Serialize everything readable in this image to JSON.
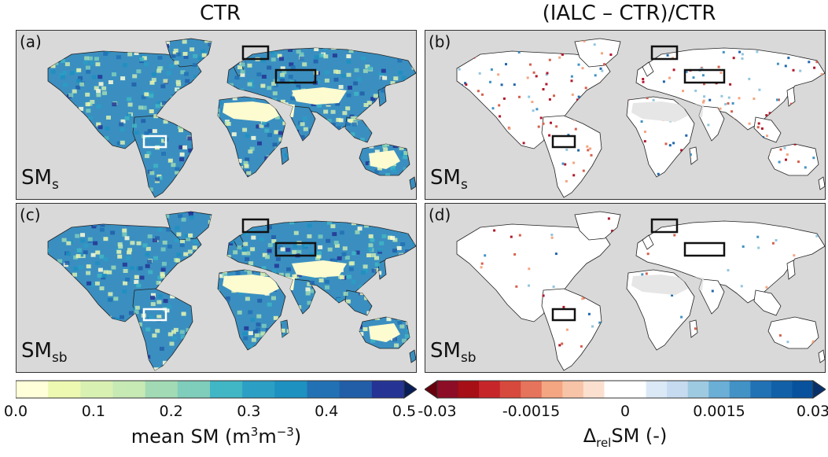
{
  "columns": {
    "left_title": "CTR",
    "right_title": "(IALC – CTR)/CTR"
  },
  "panels": [
    {
      "id": "a",
      "label": "(a)",
      "var_main": "SM",
      "var_sub": "s",
      "style": "ctr",
      "box_color": "#111111",
      "sa_box_color": "#ffffff"
    },
    {
      "id": "b",
      "label": "(b)",
      "var_main": "SM",
      "var_sub": "s",
      "style": "rel",
      "box_color": "#111111",
      "sa_box_color": "#111111"
    },
    {
      "id": "c",
      "label": "(c)",
      "var_main": "SM",
      "var_sub": "sb",
      "style": "ctr",
      "box_color": "#111111",
      "sa_box_color": "#ffffff"
    },
    {
      "id": "d",
      "label": "(d)",
      "var_main": "SM",
      "var_sub": "sb",
      "style": "rel",
      "box_color": "#111111",
      "sa_box_color": "#111111"
    }
  ],
  "colorbar_left": {
    "ticks": [
      "0.0",
      "0.1",
      "0.2",
      "0.3",
      "0.4",
      "0.5"
    ],
    "label_main": "mean SM (m",
    "label_sup1": "3",
    "label_mid": "m",
    "label_sup2": "−3",
    "label_end": ")",
    "colors": [
      "#ffffd9",
      "#edf8b1",
      "#d9f0b3",
      "#c7e9b4",
      "#a1dab4",
      "#7fcdbb",
      "#41b6c4",
      "#2c9fc4",
      "#1d91c0",
      "#2271b4",
      "#225ea8",
      "#253494"
    ],
    "extend_color": "#081d58",
    "range": [
      0.0,
      0.5
    ]
  },
  "colorbar_right": {
    "ticks": [
      "-0.03",
      "-0.0015",
      "0",
      "0.0015",
      "0.03"
    ],
    "label_main": "Δ",
    "label_sub": "rel",
    "label_end": "SM (-)",
    "colors": [
      "#8c0d25",
      "#a50f15",
      "#c6252a",
      "#d6493c",
      "#e6735c",
      "#f4a582",
      "#f8c4a8",
      "#fbe0d0",
      "#ffffff",
      "#ffffff",
      "#dbe9f6",
      "#c6dbef",
      "#9ecae1",
      "#6baed6",
      "#4292c6",
      "#2171b5",
      "#1261a8",
      "#08519c"
    ],
    "extend_low": "#67000d",
    "extend_high": "#08306b"
  }
}
